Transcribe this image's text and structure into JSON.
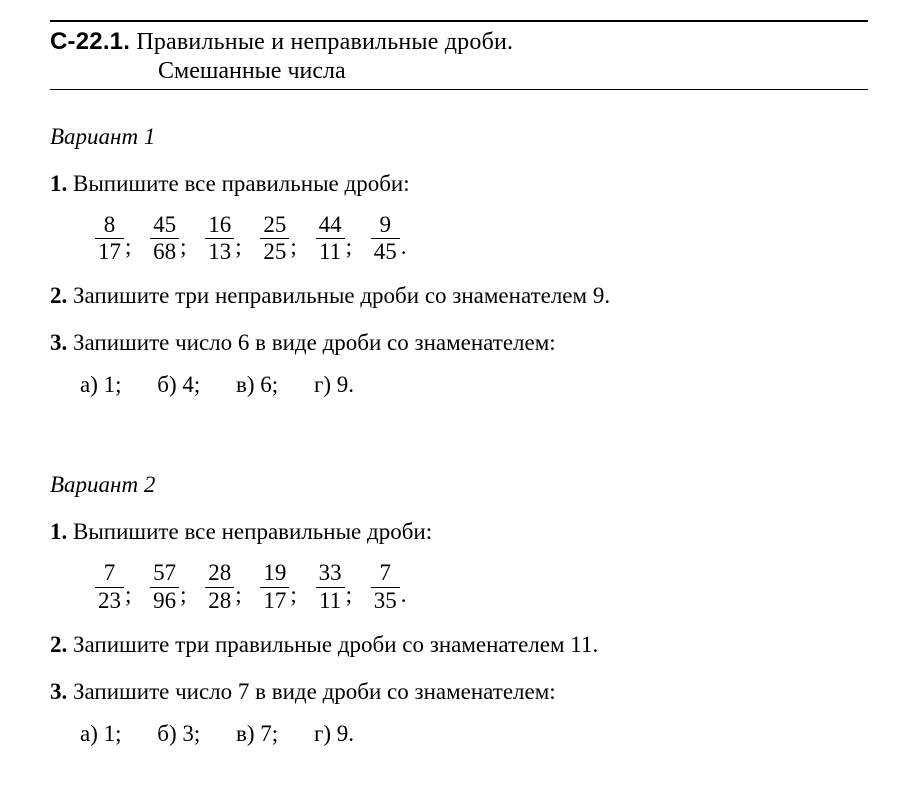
{
  "header": {
    "code": "С-22.1.",
    "title_l1": "Правильные и неправильные дроби.",
    "title_l2": "Смешанные числа"
  },
  "v1": {
    "label": "Вариант 1",
    "t1": {
      "n": "1.",
      "text": "Выпишите все правильные дроби:"
    },
    "t1_fracs": [
      {
        "n": "8",
        "d": "17"
      },
      {
        "n": "45",
        "d": "68"
      },
      {
        "n": "16",
        "d": "13"
      },
      {
        "n": "25",
        "d": "25"
      },
      {
        "n": "44",
        "d": "11"
      },
      {
        "n": "9",
        "d": "45"
      }
    ],
    "t2": {
      "n": "2.",
      "text": "Запишите три неправильные дроби со знаменателем 9."
    },
    "t3": {
      "n": "3.",
      "text": "Запишите число 6 в виде дроби со знаменателем:"
    },
    "t3_parts": {
      "a": "а) 1;",
      "b": "б) 4;",
      "c": "в) 6;",
      "d": "г) 9."
    }
  },
  "v2": {
    "label": "Вариант 2",
    "t1": {
      "n": "1.",
      "text": "Выпишите все неправильные дроби:"
    },
    "t1_fracs": [
      {
        "n": "7",
        "d": "23"
      },
      {
        "n": "57",
        "d": "96"
      },
      {
        "n": "28",
        "d": "28"
      },
      {
        "n": "19",
        "d": "17"
      },
      {
        "n": "33",
        "d": "11"
      },
      {
        "n": "7",
        "d": "35"
      }
    ],
    "t2": {
      "n": "2.",
      "text": "Запишите три правильные дроби со знаменателем 11."
    },
    "t3": {
      "n": "3.",
      "text": "Запишите число 7 в виде дроби со знаменателем:"
    },
    "t3_parts": {
      "a": "а) 1;",
      "b": "б) 3;",
      "c": "в) 7;",
      "d": "г) 9."
    }
  },
  "sep": ";",
  "end": "."
}
